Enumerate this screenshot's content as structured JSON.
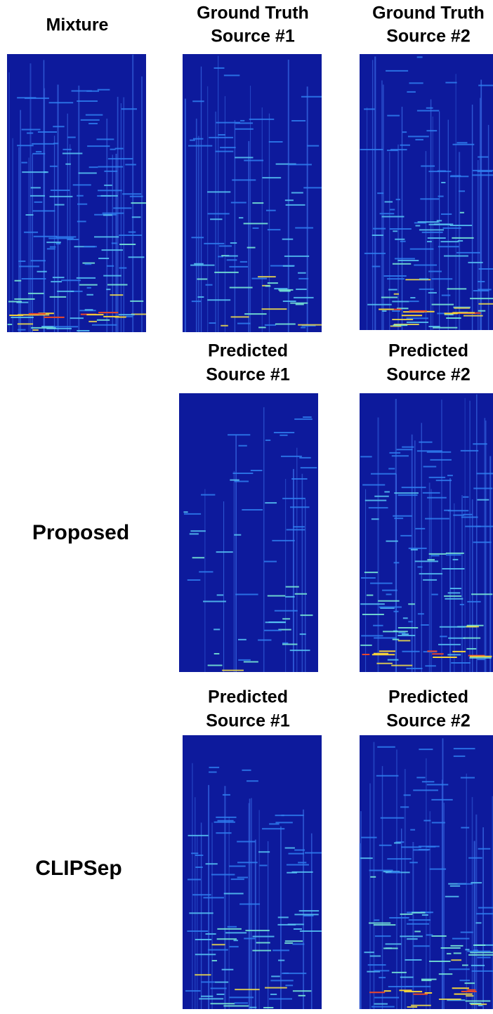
{
  "panels": [
    {
      "title": [
        "Mixture"
      ]
    },
    {
      "title": [
        "Ground Truth",
        "Source #1"
      ]
    },
    {
      "title": [
        "Ground Truth",
        "Source #2"
      ]
    },
    {
      "title": [
        "Predicted",
        "Source #1"
      ]
    },
    {
      "title": [
        "Predicted",
        "Source #2"
      ]
    },
    {
      "title": [
        "Predicted",
        "Source #1"
      ]
    },
    {
      "title": [
        "Predicted",
        "Source #2"
      ]
    }
  ],
  "row_labels": [
    "Proposed",
    "CLIPSep"
  ]
}
